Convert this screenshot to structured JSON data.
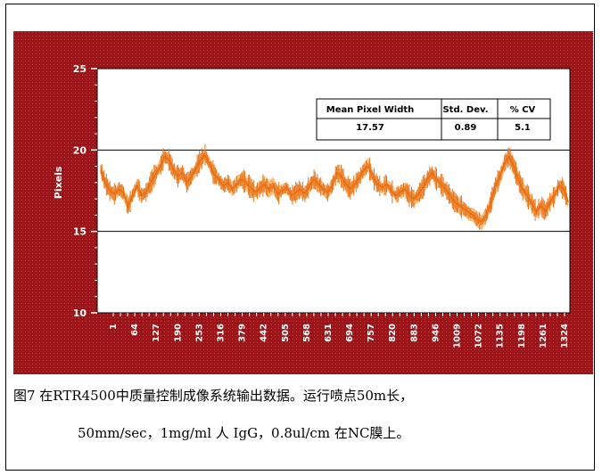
{
  "chart_data": {
    "type": "line",
    "ylabel": "Pixels",
    "xlabel": "",
    "ylim": [
      10,
      25
    ],
    "y_ticks": [
      10,
      15,
      20,
      25
    ],
    "x_tick_labels": [
      "1",
      "64",
      "127",
      "190",
      "253",
      "316",
      "379",
      "442",
      "505",
      "568",
      "631",
      "694",
      "757",
      "820",
      "883",
      "946",
      "1009",
      "1072",
      "1135",
      "1198",
      "1261",
      "1324"
    ],
    "reference_lines": [
      15,
      20
    ],
    "series": [
      {
        "values": [
          18.8,
          18.0,
          17.5,
          17.3,
          17.6,
          17.4,
          16.5,
          17.2,
          17.8,
          17.2,
          17.4,
          18.0,
          18.5,
          18.9,
          19.6,
          19.4,
          18.8,
          18.4,
          18.6,
          18.0,
          18.4,
          18.9,
          19.4,
          19.7,
          19.1,
          18.5,
          18.2,
          17.8,
          18.0,
          17.6,
          17.9,
          18.2,
          18.0,
          17.7,
          17.4,
          17.6,
          17.9,
          17.6,
          17.8,
          17.3,
          17.5,
          17.7,
          17.2,
          17.4,
          17.6,
          17.3,
          17.8,
          18.2,
          17.9,
          17.6,
          17.4,
          17.8,
          18.6,
          18.4,
          17.9,
          17.6,
          17.9,
          18.3,
          18.8,
          19.0,
          18.3,
          17.9,
          17.7,
          17.9,
          17.5,
          17.2,
          17.4,
          17.6,
          17.2,
          17.0,
          17.3,
          17.7,
          18.2,
          18.6,
          18.2,
          17.9,
          17.6,
          17.2,
          16.8,
          16.6,
          16.4,
          16.2,
          16.0,
          15.7,
          15.6,
          16.0,
          16.8,
          17.8,
          18.4,
          19.2,
          19.6,
          19.0,
          18.2,
          17.6,
          17.2,
          16.7,
          16.2,
          16.6,
          16.2,
          16.8,
          17.2,
          17.8,
          17.6,
          16.8
        ],
        "band": 0.4,
        "color": "#f08c1e"
      }
    ],
    "table": {
      "headers": [
        "Mean Pixel Width",
        "Std. Dev.",
        "% CV"
      ],
      "values": [
        "17.57",
        "0.89",
        "5.1"
      ]
    },
    "background_color": "#9d1418",
    "plot_color": "#ffffff",
    "grid": false
  },
  "caption": {
    "line1": "图7 在RTR4500中质量控制成像系统输出数据。运行喷点50m长，",
    "line2": "50mm/sec，1mg/ml 人 IgG，0.8ul/cm 在NC膜上。"
  }
}
